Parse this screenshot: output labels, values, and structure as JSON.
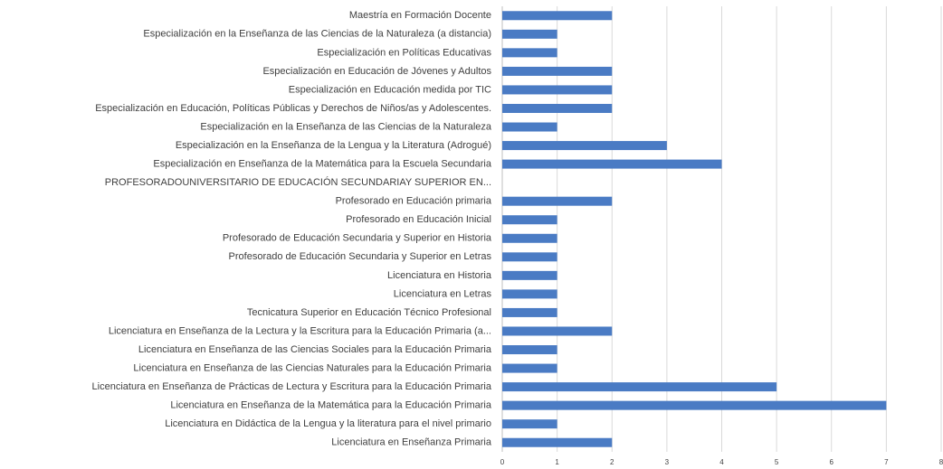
{
  "chart_data": {
    "type": "bar",
    "orientation": "horizontal",
    "categories": [
      "Maestría en Formación Docente",
      "Especialización en la Enseñanza de las Ciencias de la Naturaleza (a distancia)",
      "Especialización en Políticas Educativas",
      "Especialización en Educación de Jóvenes y Adultos",
      "Especialización en Educación medida por TIC",
      "Especialización en Educación, Políticas Públicas y Derechos de Niños/as y Adolescentes.",
      "Especialización en la Enseñanza de las Ciencias de la Naturaleza",
      "Especialización en la Enseñanza de la Lengua y la Literatura (Adrogué)",
      "Especialización en Enseñanza de la Matemática para la Escuela Secundaria",
      "PROFESORADOUNIVERSITARIO DE EDUCACIÓN SECUNDARIAY SUPERIOR EN...",
      "Profesorado en Educación primaria",
      "Profesorado en Educación Inicial",
      "Profesorado de Educación Secundaria y Superior en Historia",
      "Profesorado de Educación Secundaria y Superior en Letras",
      "Licenciatura en Historia",
      "Licenciatura en Letras",
      "Tecnicatura Superior en Educación Técnico Profesional",
      "Licenciatura en Enseñanza de la Lectura y la Escritura para la Educación Primaria (a...",
      "Licenciatura en Enseñanza de las Ciencias Sociales para la Educación Primaria",
      "Licenciatura en Enseñanza de las Ciencias Naturales para la Educación Primaria",
      "Licenciatura en  Enseñanza de Prácticas de Lectura y Escritura para la Educación Primaria",
      "Licenciatura en Enseñanza de la Matemática para la Educación Primaria",
      "Licenciatura en Didáctica de la Lengua y la literatura para el nivel primario",
      "Licenciatura en Enseñanza Primaria"
    ],
    "values": [
      2,
      1,
      1,
      2,
      2,
      2,
      1,
      3,
      4,
      0,
      2,
      1,
      1,
      1,
      1,
      1,
      1,
      2,
      1,
      1,
      5,
      7,
      1,
      2
    ],
    "color": "#4a7bc4",
    "xlim": [
      0,
      8
    ],
    "xticks": [
      0,
      1,
      2,
      3,
      4,
      5,
      6,
      7,
      8
    ],
    "grid": true
  }
}
